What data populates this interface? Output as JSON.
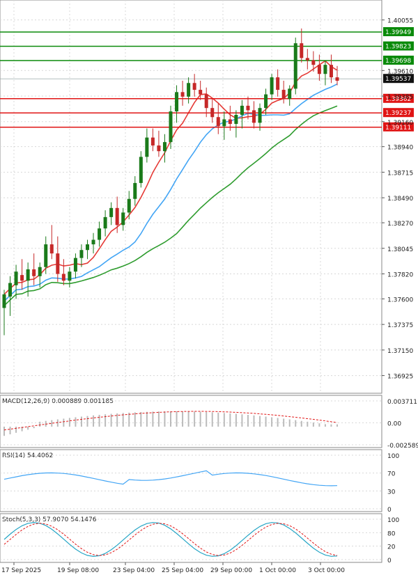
{
  "chart_data": {
    "type": "candlestick",
    "symbol_hint": "",
    "price_axis": {
      "ylim": [
        1.368,
        1.402
      ],
      "ticks": [
        "1.40055",
        "1.39610",
        "1.39385",
        "1.39160",
        "1.38940",
        "1.38715",
        "1.38490",
        "1.38270",
        "1.38045",
        "1.37820",
        "1.37600",
        "1.37375",
        "1.37150",
        "1.36925"
      ]
    },
    "current_price": "1.39537",
    "resistance_levels": [
      "1.39949",
      "1.39823",
      "1.39698"
    ],
    "support_levels": [
      "1.39362",
      "1.39237",
      "1.39111"
    ],
    "colors": {
      "up": "#1a7a1a",
      "down": "#c62828",
      "resistance": "#0a8a0a",
      "support": "#e01414",
      "ma_fast": "#e53935",
      "ma_mid": "#42a5f5",
      "ma_slow": "#2e9c2e",
      "grid": "#d8d8d8"
    },
    "candles": [
      [
        1.3752,
        1.3768,
        1.3728,
        1.3764
      ],
      [
        1.3762,
        1.378,
        1.3745,
        1.3774
      ],
      [
        1.3772,
        1.379,
        1.376,
        1.3784
      ],
      [
        1.3781,
        1.3795,
        1.3768,
        1.3776
      ],
      [
        1.3776,
        1.3792,
        1.3762,
        1.3786
      ],
      [
        1.3786,
        1.38,
        1.3772,
        1.378
      ],
      [
        1.378,
        1.3792,
        1.377,
        1.3788
      ],
      [
        1.3788,
        1.3815,
        1.3782,
        1.3808
      ],
      [
        1.3808,
        1.3825,
        1.3795,
        1.38
      ],
      [
        1.38,
        1.3815,
        1.3775,
        1.3782
      ],
      [
        1.3782,
        1.3795,
        1.3772,
        1.3776
      ],
      [
        1.3776,
        1.3788,
        1.377,
        1.3784
      ],
      [
        1.3784,
        1.38,
        1.3778,
        1.3796
      ],
      [
        1.3796,
        1.3808,
        1.3788,
        1.3803
      ],
      [
        1.3803,
        1.3812,
        1.3795,
        1.3808
      ],
      [
        1.3808,
        1.3818,
        1.38,
        1.3812
      ],
      [
        1.3812,
        1.3828,
        1.3806,
        1.3822
      ],
      [
        1.3822,
        1.3838,
        1.3815,
        1.3832
      ],
      [
        1.3832,
        1.3845,
        1.3825,
        1.384
      ],
      [
        1.384,
        1.385,
        1.3818,
        1.3825
      ],
      [
        1.3825,
        1.384,
        1.382,
        1.3836
      ],
      [
        1.3836,
        1.3855,
        1.383,
        1.3848
      ],
      [
        1.3848,
        1.3868,
        1.3842,
        1.3862
      ],
      [
        1.3862,
        1.389,
        1.3858,
        1.3885
      ],
      [
        1.3885,
        1.391,
        1.388,
        1.3902
      ],
      [
        1.3902,
        1.391,
        1.389,
        1.3895
      ],
      [
        1.3895,
        1.3908,
        1.3885,
        1.389
      ],
      [
        1.389,
        1.3905,
        1.388,
        1.3898
      ],
      [
        1.3898,
        1.393,
        1.3892,
        1.3925
      ],
      [
        1.3925,
        1.3948,
        1.3915,
        1.3942
      ],
      [
        1.3942,
        1.3952,
        1.393,
        1.3938
      ],
      [
        1.3938,
        1.3955,
        1.3932,
        1.395
      ],
      [
        1.395,
        1.3958,
        1.3938,
        1.3944
      ],
      [
        1.3944,
        1.3952,
        1.3935,
        1.394
      ],
      [
        1.394,
        1.3946,
        1.392,
        1.3928
      ],
      [
        1.3928,
        1.3936,
        1.3915,
        1.392
      ],
      [
        1.392,
        1.3932,
        1.3905,
        1.3912
      ],
      [
        1.3912,
        1.3925,
        1.39,
        1.3918
      ],
      [
        1.3918,
        1.393,
        1.3908,
        1.3914
      ],
      [
        1.3914,
        1.3926,
        1.3902,
        1.3922
      ],
      [
        1.3922,
        1.3935,
        1.391,
        1.393
      ],
      [
        1.393,
        1.3938,
        1.3918,
        1.3926
      ],
      [
        1.3926,
        1.3934,
        1.391,
        1.3915
      ],
      [
        1.3915,
        1.3932,
        1.3908,
        1.3928
      ],
      [
        1.3928,
        1.3945,
        1.3922,
        1.394
      ],
      [
        1.394,
        1.3958,
        1.3935,
        1.3955
      ],
      [
        1.3955,
        1.3962,
        1.3938,
        1.3944
      ],
      [
        1.3944,
        1.3952,
        1.3932,
        1.3936
      ],
      [
        1.3936,
        1.3948,
        1.393,
        1.3945
      ],
      [
        1.3945,
        1.399,
        1.394,
        1.3985
      ],
      [
        1.3985,
        1.3998,
        1.3968,
        1.3972
      ],
      [
        1.3972,
        1.398,
        1.3962,
        1.397
      ],
      [
        1.397,
        1.3978,
        1.396,
        1.3966
      ],
      [
        1.3966,
        1.3975,
        1.3952,
        1.3958
      ],
      [
        1.3958,
        1.397,
        1.3948,
        1.3966
      ],
      [
        1.3966,
        1.3975,
        1.395,
        1.3955
      ],
      [
        1.3955,
        1.3965,
        1.3948,
        1.3952
      ]
    ],
    "panels": {
      "macd": {
        "label": "MACD(12,26,9) 0.000889 0.001185",
        "ticks": [
          "0.003711",
          "0.00",
          "-0.002589"
        ]
      },
      "rsi": {
        "label": "RSI(14) 54.4062",
        "ticks": [
          "100",
          "70",
          "30",
          "0"
        ]
      },
      "stoch": {
        "label": "Stoch(5,3,3) 57.9070 54.1476",
        "ticks": [
          "100",
          "80",
          "20",
          "0"
        ]
      }
    },
    "x_labels": [
      "17 Sep 2025",
      "19 Sep 08:00",
      "23 Sep 04:00",
      "25 Sep 04:00",
      "29 Sep 00:00",
      "1 Oct 00:00",
      "3 Oct 00:00"
    ]
  }
}
